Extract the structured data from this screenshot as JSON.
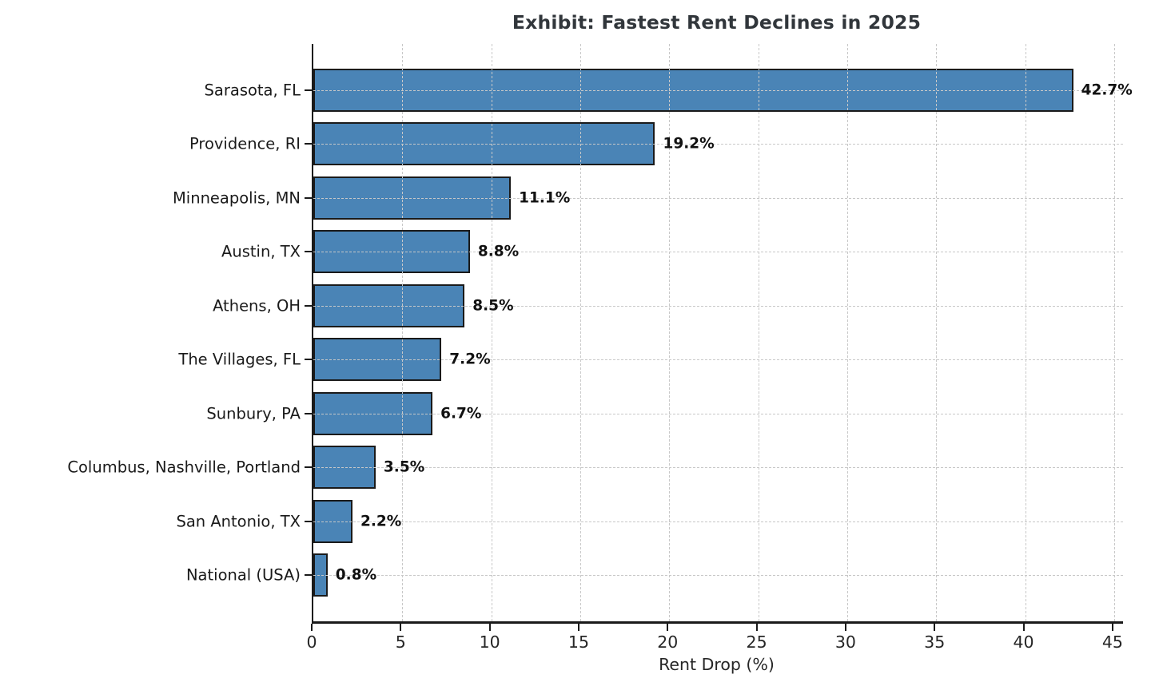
{
  "chart_data": {
    "type": "bar",
    "orientation": "horizontal",
    "title": "Exhibit: Fastest Rent Declines in 2025",
    "xlabel": "Rent Drop (%)",
    "categories": [
      "Sarasota, FL",
      "Providence, RI",
      "Minneapolis, MN",
      "Austin, TX",
      "Athens, OH",
      "The Villages, FL",
      "Sunbury, PA",
      "Columbus, Nashville, Portland",
      "San Antonio, TX",
      "National (USA)"
    ],
    "values": [
      42.7,
      19.2,
      11.1,
      8.8,
      8.5,
      7.2,
      6.7,
      3.5,
      2.2,
      0.8
    ],
    "value_labels": [
      "42.7%",
      "19.2%",
      "11.1%",
      "8.8%",
      "8.5%",
      "7.2%",
      "6.7%",
      "3.5%",
      "2.2%",
      "0.8%"
    ],
    "xticks": [
      0,
      5,
      10,
      15,
      20,
      25,
      30,
      35,
      40,
      45
    ],
    "xlim": [
      0,
      45.5
    ],
    "grid": "dashed",
    "legend": "none",
    "colors": {
      "bar_fill": "#4A84B6",
      "bar_edge": "#1A1A1A",
      "title_text": "#31363B",
      "axis_text": "#262626",
      "label_text": "#1A1A1A",
      "value_text": "#111111",
      "grid_line": "#C8C8C8",
      "background": "#FFFFFF"
    }
  }
}
